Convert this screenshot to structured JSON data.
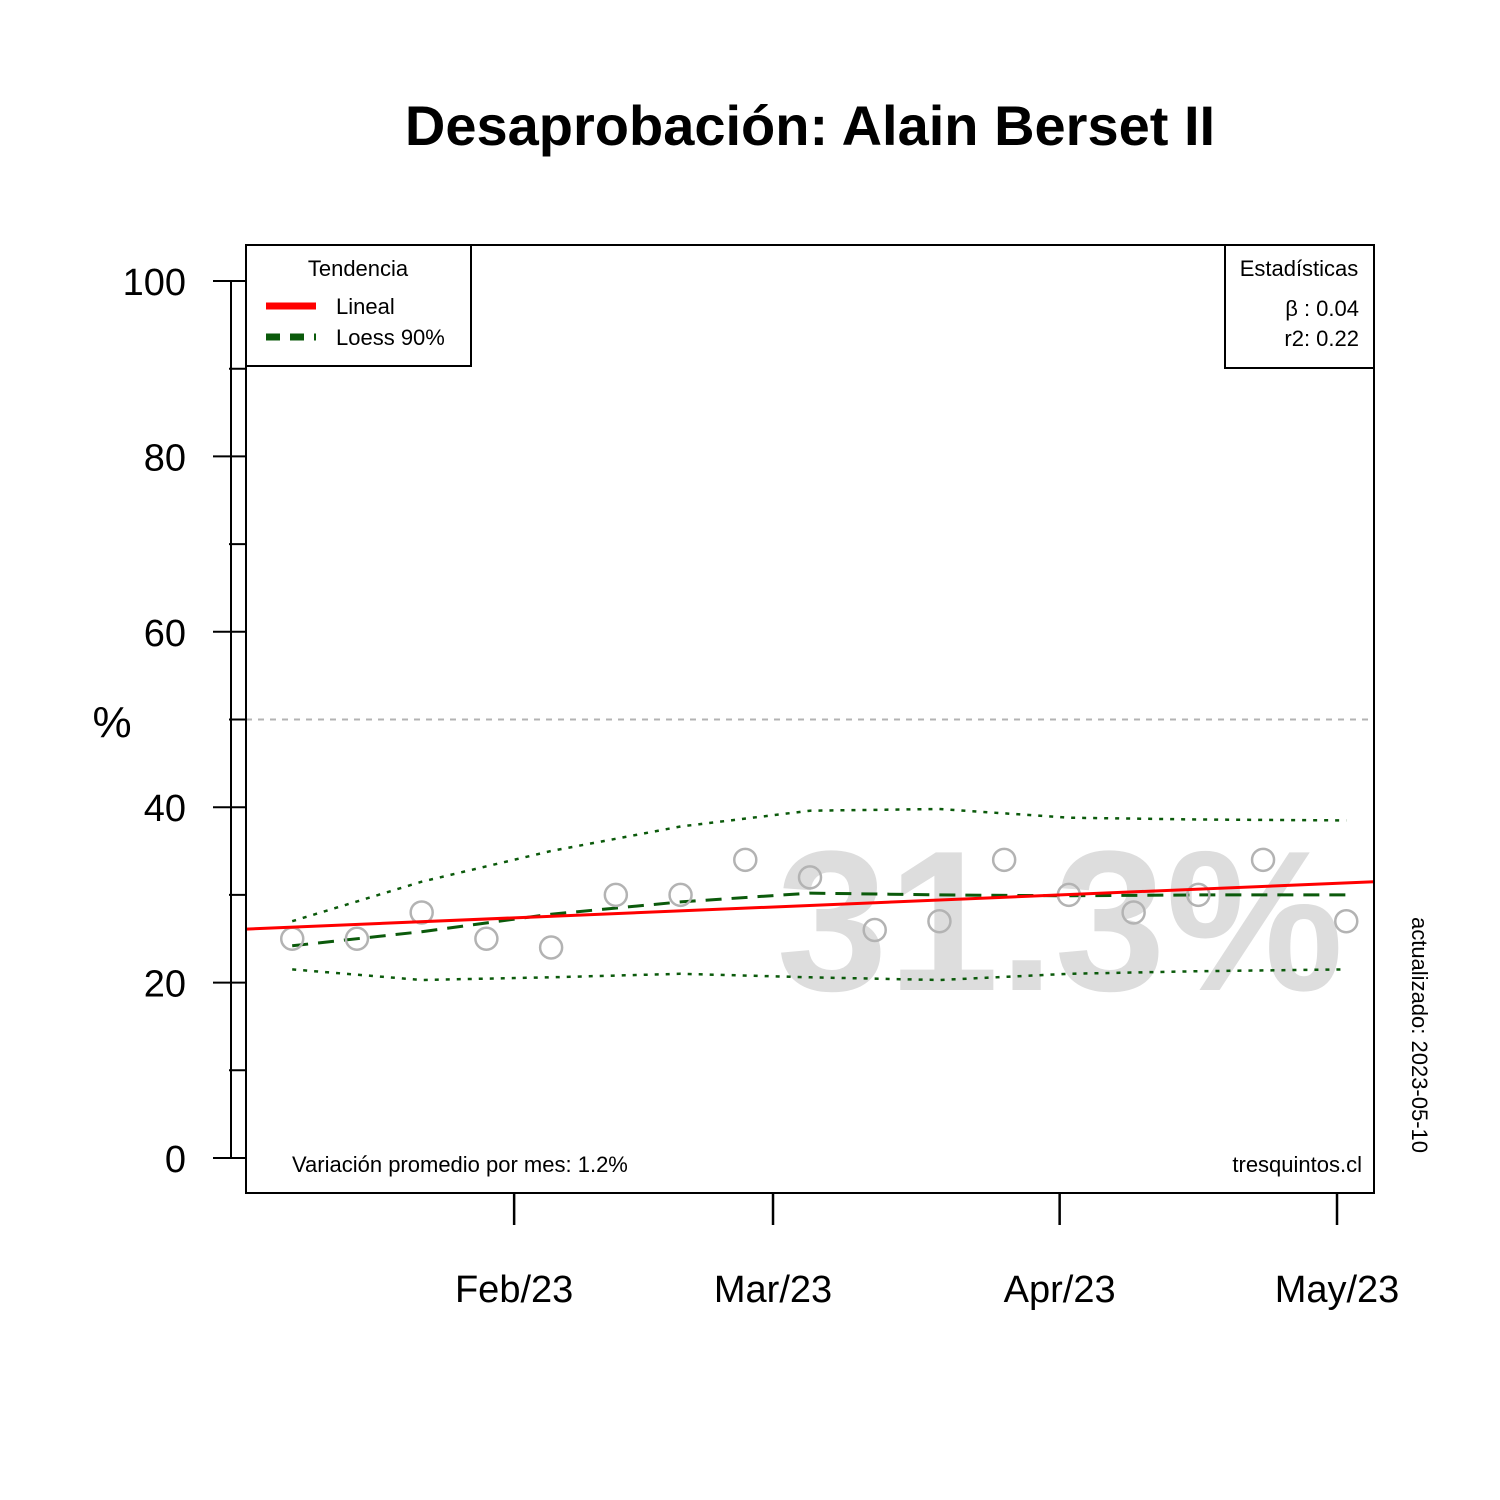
{
  "chart_data": {
    "type": "scatter",
    "title": "Desaprobación: Alain Berset II",
    "ylabel": "%",
    "xlabel": "",
    "ylim": [
      0,
      100
    ],
    "yticks": [
      0,
      20,
      40,
      60,
      80,
      100
    ],
    "yminor": [
      10,
      30,
      50,
      70,
      90
    ],
    "xlim": [
      "2023-01-03",
      "2023-05-05"
    ],
    "xticks": [
      {
        "date": "2023-02-01",
        "label": "Feb/23"
      },
      {
        "date": "2023-03-01",
        "label": "Mar/23"
      },
      {
        "date": "2023-04-01",
        "label": "Apr/23"
      },
      {
        "date": "2023-05-01",
        "label": "May/23"
      }
    ],
    "reference_line": 50,
    "points": [
      {
        "date": "2023-01-08",
        "y": 25
      },
      {
        "date": "2023-01-15",
        "y": 25
      },
      {
        "date": "2023-01-22",
        "y": 28
      },
      {
        "date": "2023-01-29",
        "y": 25
      },
      {
        "date": "2023-02-05",
        "y": 24
      },
      {
        "date": "2023-02-12",
        "y": 30
      },
      {
        "date": "2023-02-19",
        "y": 30
      },
      {
        "date": "2023-02-26",
        "y": 34
      },
      {
        "date": "2023-03-05",
        "y": 32
      },
      {
        "date": "2023-03-12",
        "y": 26
      },
      {
        "date": "2023-03-19",
        "y": 27
      },
      {
        "date": "2023-03-26",
        "y": 34
      },
      {
        "date": "2023-04-02",
        "y": 30
      },
      {
        "date": "2023-04-09",
        "y": 28
      },
      {
        "date": "2023-04-16",
        "y": 30
      },
      {
        "date": "2023-04-23",
        "y": 34
      },
      {
        "date": "2023-05-02",
        "y": 27
      }
    ],
    "linear": {
      "name": "Lineal",
      "color": "#ff0000",
      "start": {
        "date": "2023-01-03",
        "y": 26.1
      },
      "end": {
        "date": "2023-05-05",
        "y": 31.5
      }
    },
    "loess": {
      "name": "Loess 90%",
      "color": "#0b5a0b",
      "dates": [
        "2023-01-08",
        "2023-01-22",
        "2023-02-05",
        "2023-02-19",
        "2023-03-05",
        "2023-03-19",
        "2023-04-02",
        "2023-04-16",
        "2023-05-02"
      ],
      "fit": [
        24.2,
        25.8,
        27.8,
        29.2,
        30.2,
        30.0,
        29.9,
        30.0,
        30.0
      ],
      "upper": [
        27.0,
        31.5,
        35.0,
        37.8,
        39.6,
        39.8,
        38.8,
        38.6,
        38.5
      ],
      "lower": [
        21.5,
        20.3,
        20.6,
        21.0,
        20.6,
        20.3,
        21.0,
        21.3,
        21.5
      ]
    },
    "point_color": "#b3b3b3",
    "reference_color": "#b3b3b3",
    "watermark_color": "#dddddd",
    "legend": {
      "title": "Tendencia",
      "position": "top-left",
      "items": [
        "Lineal",
        "Loess 90%"
      ]
    },
    "stats": {
      "title": "Estadísticas",
      "position": "top-right",
      "lines": [
        "β : 0.04",
        "r2: 0.22"
      ]
    },
    "big_value": "31.3%",
    "footer_left": "Variación promedio por mes: 1.2%",
    "footer_right": "tresquintos.cl",
    "updated": "actualizado: 2023-05-10"
  }
}
